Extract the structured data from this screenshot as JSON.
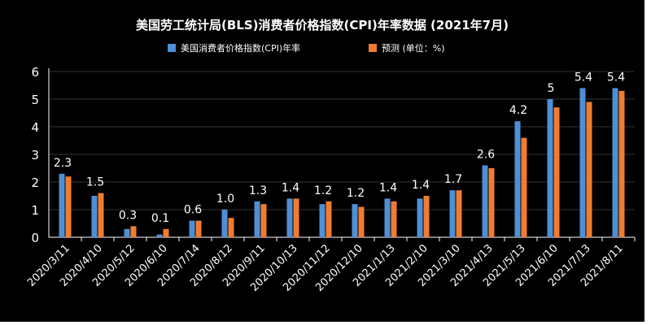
{
  "chart_data": {
    "type": "bar",
    "title": "美国劳工统计局(BLS)消费者价格指数(CPI)年率数据 (2021年7月)",
    "categories": [
      "2020/3/11",
      "2020/4/10",
      "2020/5/12",
      "2020/6/10",
      "2020/7/14",
      "2020/8/12",
      "2020/9/11",
      "2020/10/13",
      "2020/11/12",
      "2020/12/10",
      "2021/1/13",
      "2021/2/10",
      "2021/3/10",
      "2021/4/13",
      "2021/5/13",
      "2021/6/10",
      "2021/7/13",
      "2021/8/11"
    ],
    "series": [
      {
        "name": "美国消费者价格指数(CPI)年率",
        "color": "#4f8fd6",
        "values": [
          2.3,
          1.5,
          0.3,
          0.1,
          0.6,
          1.0,
          1.3,
          1.4,
          1.2,
          1.2,
          1.4,
          1.4,
          1.7,
          2.6,
          4.2,
          5,
          5.4,
          5.4
        ]
      },
      {
        "name": "预测  (单位：%)",
        "color": "#f07c30",
        "values": [
          2.2,
          1.6,
          0.4,
          0.3,
          0.6,
          0.7,
          1.2,
          1.4,
          1.3,
          1.1,
          1.3,
          1.5,
          1.7,
          2.5,
          3.6,
          4.7,
          4.9,
          5.3
        ]
      }
    ],
    "data_labels": [
      "2.3",
      "1.5",
      "0.3",
      "0.1",
      "0.6",
      "1.0",
      "1.3",
      "1.4",
      "1.2",
      "1.2",
      "1.4",
      "1.4",
      "1.7",
      "2.6",
      "4.2",
      "5",
      "5.4",
      "5.4"
    ],
    "yticks": [
      "0",
      "1",
      "2",
      "3",
      "4",
      "5",
      "6"
    ],
    "ylim": [
      0,
      6
    ],
    "grid": true,
    "legend_position": "top-center",
    "background": "#000000",
    "text_color": "#ffffff",
    "grid_color": "#333333"
  }
}
